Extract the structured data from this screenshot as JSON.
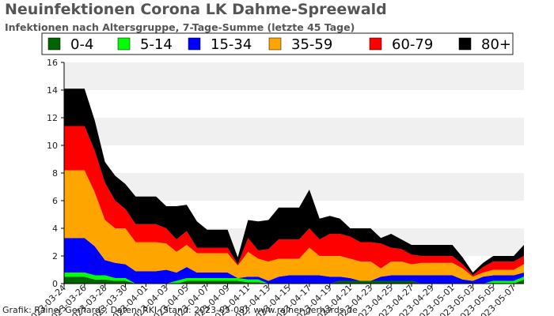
{
  "title": "Neuinfektionen Corona LK Dahme-Spreewald",
  "subtitle": "Infektionen nach Altersgruppe, 7-Tage-Summe (letzte 45 Tage)",
  "footer": "Grafik: Rainer Gerhards, Daten: RKI (Stand: 2023-05-08), www.rainer-gerhards.de",
  "chart_data": {
    "type": "area",
    "stacked": true,
    "x": [
      "2023-03-24",
      "2023-03-25",
      "2023-03-26",
      "2023-03-27",
      "2023-03-28",
      "2023-03-29",
      "2023-03-30",
      "2023-03-31",
      "2023-04-01",
      "2023-04-02",
      "2023-04-03",
      "2023-04-04",
      "2023-04-05",
      "2023-04-06",
      "2023-04-07",
      "2023-04-08",
      "2023-04-09",
      "2023-04-10",
      "2023-04-11",
      "2023-04-12",
      "2023-04-13",
      "2023-04-14",
      "2023-04-15",
      "2023-04-16",
      "2023-04-17",
      "2023-04-18",
      "2023-04-19",
      "2023-04-20",
      "2023-04-21",
      "2023-04-22",
      "2023-04-23",
      "2023-04-24",
      "2023-04-25",
      "2023-04-26",
      "2023-04-27",
      "2023-04-28",
      "2023-04-29",
      "2023-04-30",
      "2023-05-01",
      "2023-05-02",
      "2023-05-03",
      "2023-05-04",
      "2023-05-05",
      "2023-05-06",
      "2023-05-07",
      "2023-05-08"
    ],
    "xtick_labels": [
      "2023-03-24",
      "2023-03-26",
      "2023-03-28",
      "2023-03-30",
      "2023-04-01",
      "2023-04-03",
      "2023-04-05",
      "2023-04-07",
      "2023-04-09",
      "2023-04-11",
      "2023-04-13",
      "2023-04-15",
      "2023-04-17",
      "2023-04-19",
      "2023-04-21",
      "2023-04-23",
      "2023-04-25",
      "2023-04-27",
      "2023-04-29",
      "2023-05-01",
      "2023-05-03",
      "2023-05-05",
      "2023-05-07"
    ],
    "ylim": [
      0,
      16
    ],
    "yticks": [
      0,
      2,
      4,
      6,
      8,
      10,
      12,
      14,
      16
    ],
    "legend_position": "top",
    "series": [
      {
        "name": "0-4",
        "color": "#006400",
        "values": [
          0.5,
          0.5,
          0.5,
          0.3,
          0.3,
          0.2,
          0.2,
          0,
          0,
          0,
          0,
          0,
          0.2,
          0.2,
          0.2,
          0.2,
          0.2,
          0.2,
          0.1,
          0.1,
          0,
          0,
          0,
          0,
          0,
          0,
          0,
          0.2,
          0.2,
          0.2,
          0.2,
          0.2,
          0.2,
          0.2,
          0.2,
          0,
          0,
          0,
          0,
          0,
          0,
          0,
          0,
          0,
          0,
          0.3
        ]
      },
      {
        "name": "5-14",
        "color": "#00ff00",
        "values": [
          0.3,
          0.3,
          0.3,
          0.3,
          0.3,
          0.2,
          0.2,
          0,
          0,
          0,
          0,
          0.2,
          0.2,
          0.2,
          0.2,
          0.2,
          0.2,
          0.2,
          0.2,
          0.2,
          0,
          0,
          0,
          0,
          0,
          0,
          0,
          0,
          0,
          0,
          0,
          0,
          0,
          0,
          0,
          0,
          0,
          0,
          0,
          0,
          0,
          0,
          0.2,
          0.2,
          0.2,
          0.2
        ]
      },
      {
        "name": "15-34",
        "color": "#0000ff",
        "values": [
          2.5,
          2.5,
          2.5,
          2.1,
          1.1,
          1.1,
          1,
          0.9,
          0.9,
          0.9,
          1,
          0.6,
          0.8,
          0.4,
          0.4,
          0.4,
          0.4,
          0,
          0.2,
          0.2,
          0.2,
          0.5,
          0.6,
          0.6,
          0.6,
          0.6,
          0.5,
          0.3,
          0.2,
          0,
          0,
          0.3,
          0.4,
          0.4,
          0.4,
          0.6,
          0.6,
          0.6,
          0.6,
          0.3,
          0.2,
          0.5,
          0.4,
          0.4,
          0.4,
          0.3
        ]
      },
      {
        "name": "35-59",
        "color": "#ffa500",
        "values": [
          4.9,
          4.9,
          4.9,
          3.9,
          2.9,
          2.5,
          2.6,
          2.1,
          2.1,
          2.1,
          1.9,
          1.5,
          1.6,
          1.4,
          1.4,
          1.4,
          1.4,
          0.9,
          1.8,
          1.3,
          1.4,
          1.3,
          1.2,
          1.2,
          2,
          1.4,
          1.5,
          1.5,
          1.4,
          1.4,
          1.4,
          0.6,
          1,
          1,
          0.8,
          0.9,
          0.9,
          0.9,
          0.9,
          0.8,
          0.3,
          0.3,
          0.4,
          0.4,
          0.4,
          0.6
        ]
      },
      {
        "name": "60-79",
        "color": "#ff0000",
        "values": [
          3.2,
          3.2,
          3.2,
          3,
          2.7,
          2,
          1.4,
          1.3,
          1.3,
          1.3,
          1.1,
          0.9,
          1,
          0.4,
          0.4,
          0.4,
          0.4,
          0.1,
          1,
          0.6,
          0.9,
          1.4,
          1.4,
          1.4,
          1.4,
          1.2,
          1.6,
          1.6,
          1.6,
          1.4,
          1.4,
          1.8,
          1,
          0.9,
          0.7,
          0.5,
          0.5,
          0.5,
          0.5,
          0.3,
          0.1,
          0.4,
          0.6,
          0.6,
          0.6,
          0.6
        ]
      },
      {
        "name": "80+",
        "color": "#000000",
        "values": [
          2.7,
          2.7,
          2.7,
          2.2,
          1.5,
          1.8,
          1.8,
          2,
          2,
          2,
          1.6,
          2.4,
          1.9,
          1.9,
          1.3,
          1.3,
          1.3,
          0.5,
          1.3,
          2.1,
          2.1,
          2.3,
          2.3,
          2.3,
          2.8,
          1.5,
          1.3,
          1.1,
          0.6,
          1,
          1,
          0.4,
          1,
          0.7,
          0.7,
          0.8,
          0.8,
          0.8,
          0.8,
          0.5,
          0.2,
          0.3,
          0.4,
          0.4,
          0.4,
          0.8
        ]
      }
    ]
  }
}
